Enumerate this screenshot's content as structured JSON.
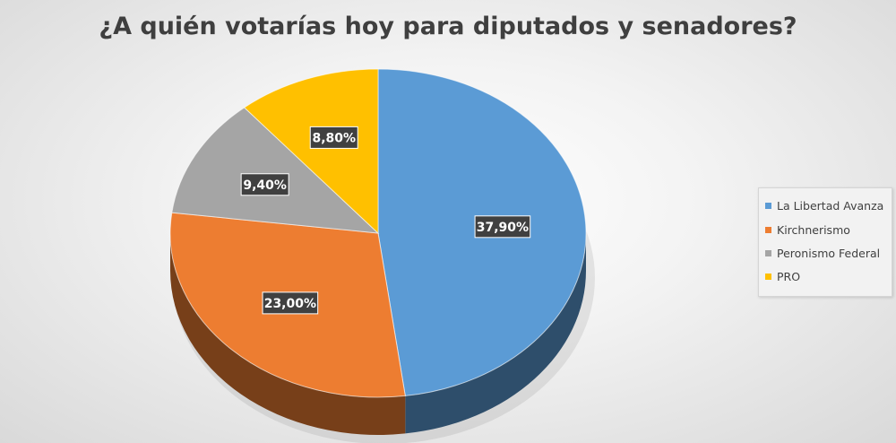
{
  "chart_data": {
    "type": "pie",
    "title": "¿A quién votarías hoy para diputados y senadores?",
    "categories": [
      "La Libertad Avanza",
      "Kirchnerismo",
      "Peronismo Federal",
      "PRO"
    ],
    "values": [
      37.9,
      23.0,
      9.4,
      8.8
    ],
    "value_labels": [
      "37,90%",
      "23,00%",
      "9,40%",
      "8,80%"
    ],
    "colors": [
      "#5b9bd5",
      "#ed7d31",
      "#a5a5a5",
      "#ffc000"
    ],
    "start_angle_deg": 0,
    "direction": "clockwise",
    "style": "3d",
    "legend_position": "right",
    "data_label_style": "white-on-dark-box"
  }
}
